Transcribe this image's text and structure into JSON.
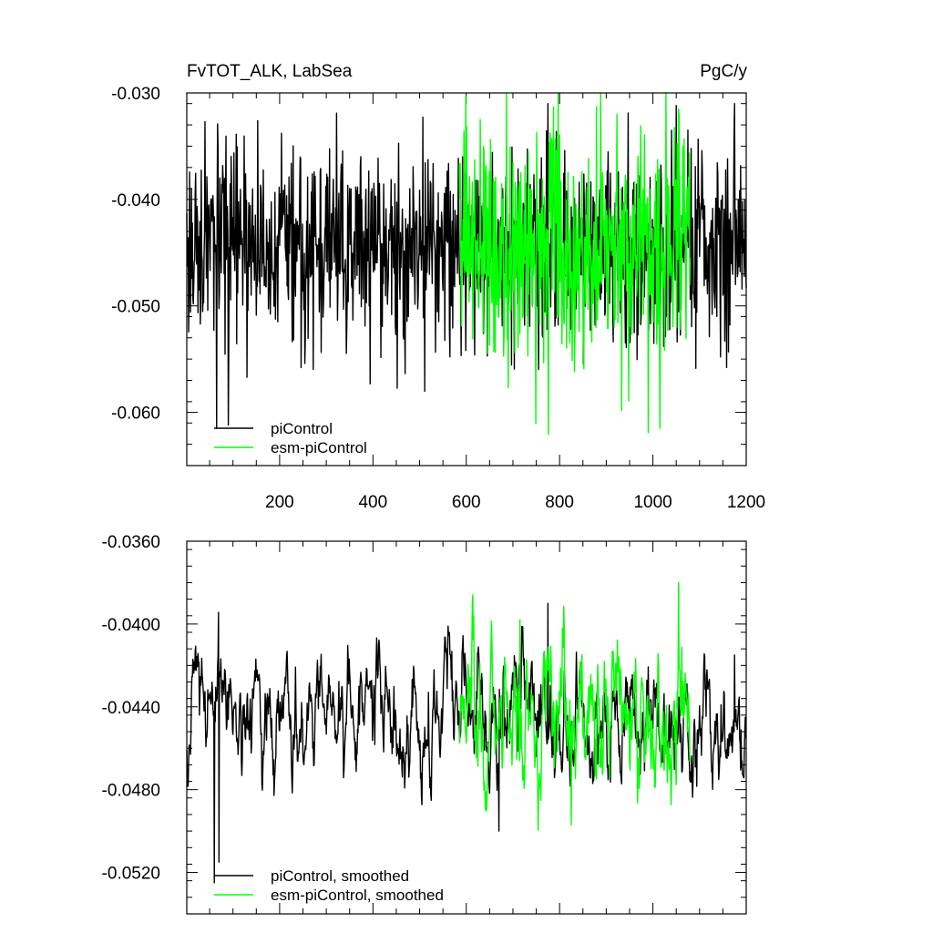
{
  "chart_data": [
    {
      "type": "line",
      "title": "FvTOT_ALK, LabSea",
      "units": "PgC/y",
      "xlabel": "",
      "ylabel": "",
      "xlim": [
        1,
        1200
      ],
      "ylim": [
        -0.065,
        -0.03
      ],
      "x_ticks": [
        200,
        400,
        600,
        800,
        1000,
        1200
      ],
      "y_ticks": [
        -0.03,
        -0.04,
        -0.05,
        -0.06
      ],
      "y_tick_labels": [
        "-0.030",
        "-0.040",
        "-0.050",
        "-0.060"
      ],
      "legend_position": "bottom-left",
      "series": [
        {
          "name": "piControl",
          "color": "#000000",
          "x_start": 1,
          "x_end": 1200,
          "mean": -0.0445,
          "sd": 0.0045,
          "extremes": [
            [
              65,
              -0.0615
            ],
            [
              90,
              -0.0612
            ],
            [
              1175,
              -0.031
            ],
            [
              775,
              -0.031
            ]
          ]
        },
        {
          "name": "esm-piControl",
          "color": "#00ff00",
          "x_start": 585,
          "x_end": 1080,
          "mean": -0.0445,
          "sd": 0.0055,
          "extremes": [
            [
              1015,
              -0.0615
            ],
            [
              1055,
              -0.0315
            ],
            [
              630,
              -0.0325
            ]
          ]
        }
      ]
    },
    {
      "type": "line",
      "title": "",
      "xlabel": "",
      "ylabel": "",
      "xlim": [
        1,
        1200
      ],
      "ylim": [
        -0.054,
        -0.036
      ],
      "y_ticks": [
        -0.036,
        -0.04,
        -0.044,
        -0.048,
        -0.052
      ],
      "y_tick_labels": [
        "-0.0360",
        "-0.0400",
        "-0.0440",
        "-0.0480",
        "-0.0520"
      ],
      "legend_position": "bottom-left",
      "series": [
        {
          "name": "piControl, smoothed",
          "color": "#000000",
          "x_start": 1,
          "x_end": 1200,
          "mean": -0.0445,
          "sd": 0.0016,
          "extremes": [
            [
              60,
              -0.0525
            ],
            [
              70,
              -0.0515
            ],
            [
              670,
              -0.05
            ],
            [
              775,
              -0.039
            ],
            [
              1175,
              -0.0415
            ]
          ]
        },
        {
          "name": "esm-piControl, smoothed",
          "color": "#00ff00",
          "x_start": 585,
          "x_end": 1080,
          "mean": -0.0445,
          "sd": 0.0018,
          "extremes": [
            [
              825,
              -0.0497
            ],
            [
              1055,
              -0.038
            ],
            [
              715,
              -0.0398
            ]
          ]
        }
      ]
    }
  ]
}
